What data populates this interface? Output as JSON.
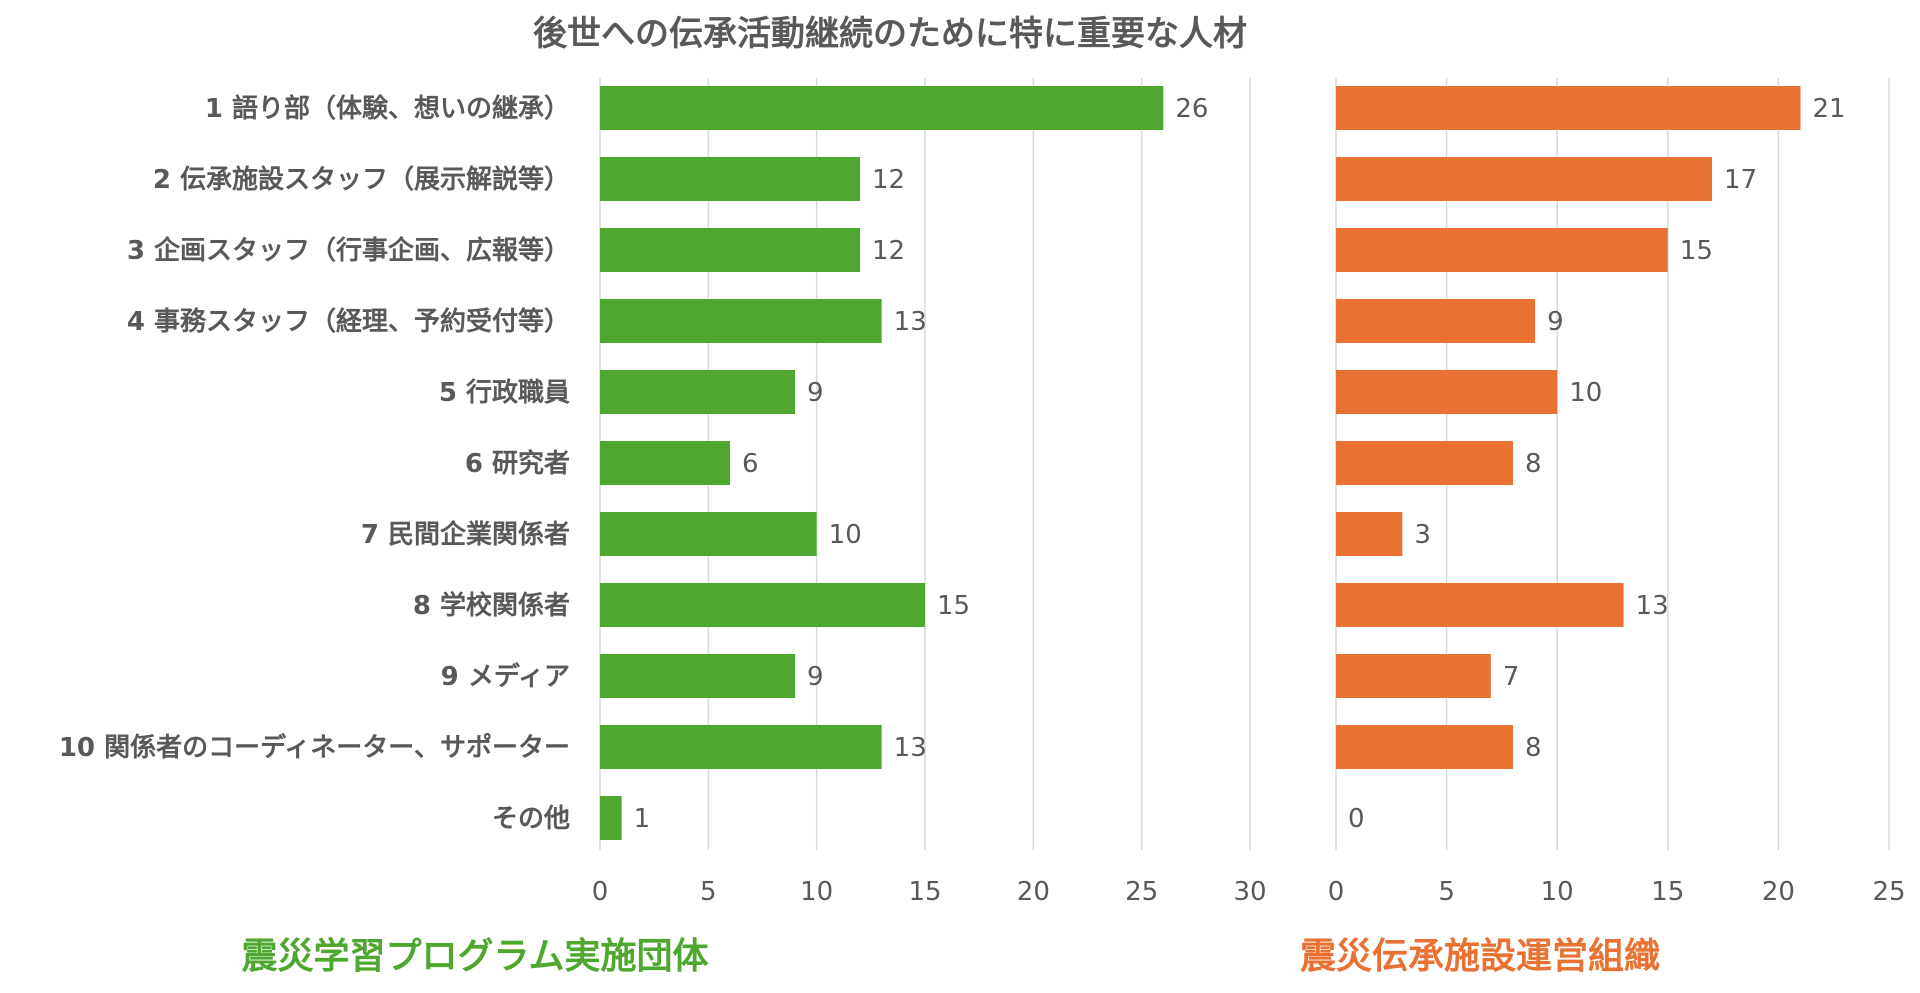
{
  "chart_data": {
    "type": "bar",
    "orientation": "horizontal",
    "title": "後世への伝承活動継続のために特に重要な人材",
    "categories": [
      "1 語り部（体験、想いの継承）",
      "2 伝承施設スタッフ（展示解説等）",
      "3 企画スタッフ（行事企画、広報等）",
      "4 事務スタッフ（経理、予約受付等）",
      "5 行政職員",
      "6 研究者",
      "7 民間企業関係者",
      "8 学校関係者",
      "9 メディア",
      "10 関係者のコーディネーター、サポーター",
      "その他"
    ],
    "series": [
      {
        "name": "震災学習プログラム実施団体",
        "color": "#4ea72e",
        "values": [
          26,
          12,
          12,
          13,
          9,
          6,
          10,
          15,
          9,
          13,
          1
        ],
        "xlim": [
          0,
          30
        ],
        "ticks": [
          0,
          5,
          10,
          15,
          20,
          25,
          30
        ]
      },
      {
        "name": "震災伝承施設運営組織",
        "color": "#e97132",
        "values": [
          21,
          17,
          15,
          9,
          10,
          8,
          3,
          13,
          7,
          8,
          0
        ],
        "xlim": [
          0,
          25
        ],
        "ticks": [
          0,
          5,
          10,
          15,
          20,
          25
        ]
      }
    ],
    "grid": true,
    "data_labels": true,
    "legend": "panel-labels-below"
  }
}
